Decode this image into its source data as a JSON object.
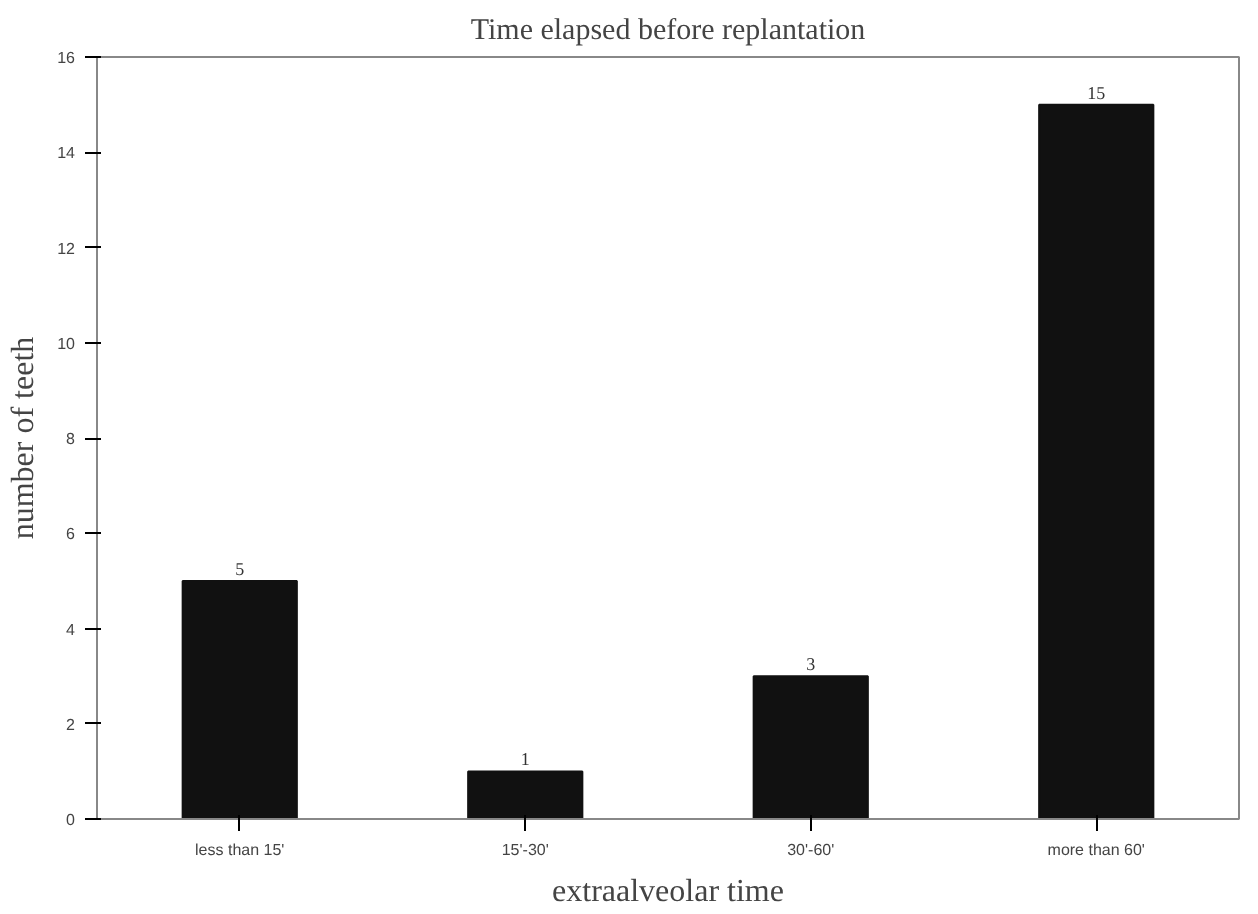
{
  "chart_data": {
    "type": "bar",
    "title": "Time elapsed before replantation",
    "xlabel": "extraalveolar time",
    "ylabel": "number of teeth",
    "categories": [
      "less than 15'",
      "15'-30'",
      "30'-60'",
      "more than 60'"
    ],
    "values": [
      5,
      1,
      3,
      15
    ],
    "color": "#111111",
    "ylim": [
      0,
      16
    ],
    "yticks": [
      0,
      2,
      4,
      6,
      8,
      10,
      12,
      14,
      16
    ],
    "grid": false,
    "data_labels": true
  }
}
